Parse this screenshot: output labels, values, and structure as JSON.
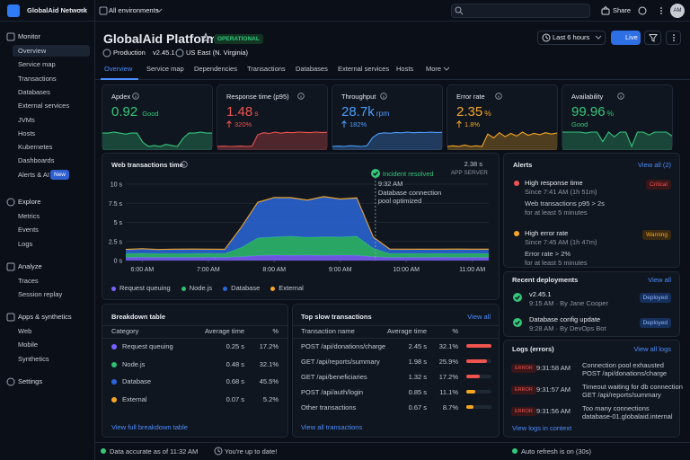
{
  "topbar": {
    "org": "GlobalAid Network",
    "environment": "All environments",
    "share": "Share",
    "avatar": "AM"
  },
  "sidebar": {
    "sections": [
      {
        "title": "Monitor",
        "items": [
          "Overview",
          "Service map",
          "Transactions",
          "Databases",
          "External services",
          "JVMs",
          "Hosts",
          "Kubernetes",
          "Dashboards",
          "Alerts & AI"
        ],
        "badge": "New"
      },
      {
        "title": "Explore",
        "items": [
          "Metrics",
          "Events",
          "Logs"
        ]
      },
      {
        "title": "Analyze",
        "items": [
          "Traces",
          "Session replay"
        ]
      },
      {
        "title": "Apps & synthetics",
        "items": [
          "Web",
          "Mobile",
          "Synthetics"
        ]
      },
      {
        "title": "Settings"
      }
    ]
  },
  "header": {
    "title": "GlobalAid Platform",
    "status": "OPERATIONAL",
    "environment": "Production",
    "version": "v2.45.1",
    "region": "US East (N. Virginia)",
    "time_range": "Last 6 hours",
    "live": "Live"
  },
  "tabs": [
    "Overview",
    "Service map",
    "Dependencies",
    "Transactions",
    "Databases",
    "External services",
    "Hosts",
    "More"
  ],
  "kpis": [
    {
      "label": "Apdex",
      "value": "0.92",
      "note": "Good",
      "note_position": "inline",
      "color": "#34c77b",
      "spark": [
        0.95,
        0.95,
        0.96,
        0.95,
        0.94,
        0.95,
        0.95,
        0.86,
        0.82,
        0.83,
        0.82,
        0.84,
        0.83,
        0.82,
        0.9,
        0.95,
        0.95,
        0.96,
        0.95,
        0.95
      ]
    },
    {
      "label": "Response time (p95)",
      "value": "1.48",
      "unit": "s",
      "delta": "320%",
      "color": "#ef5350",
      "spark": [
        0.4,
        0.42,
        0.4,
        0.41,
        0.43,
        0.4,
        0.42,
        1.3,
        1.45,
        1.4,
        1.5,
        1.42,
        1.48,
        1.45,
        1.5,
        1.48,
        1.46,
        1.5,
        1.47,
        1.48
      ]
    },
    {
      "label": "Throughput",
      "value": "28.7k",
      "unit": "rpm",
      "delta": "182%",
      "color": "#4c9dff",
      "spark": [
        10,
        10.5,
        10,
        11,
        10.5,
        10,
        11,
        22,
        27,
        28,
        27.5,
        28.5,
        28,
        29,
        28.2,
        28.7,
        28.4,
        28.9,
        28.5,
        28.7
      ]
    },
    {
      "label": "Error rate",
      "value": "2.35",
      "unit": "%",
      "delta": "1.8%",
      "color": "#f5a623",
      "spark": [
        0.3,
        0.4,
        0.3,
        0.5,
        0.3,
        0.4,
        0.3,
        2.2,
        1.6,
        2.4,
        1.8,
        2.3,
        1.9,
        2.5,
        2,
        2.3,
        2.1,
        2.4,
        2.2,
        2.35
      ]
    },
    {
      "label": "Availability",
      "value": "99.96",
      "unit": "%",
      "note": "Good",
      "note_position": "below",
      "color": "#34c77b",
      "spark": [
        100,
        100,
        100,
        100,
        99.99,
        100,
        100,
        99.9,
        100,
        99.95,
        100,
        100,
        99.85,
        100,
        100,
        99.97,
        100,
        100,
        100,
        99.96
      ]
    }
  ],
  "chart_data": {
    "type": "area",
    "stacked": true,
    "title": "Web transactions time",
    "summary": "2.38 s",
    "summary_label": "APP SERVER",
    "annotation": {
      "title": "Incident resolved",
      "time": "9:32 AM",
      "text": "Database connection pool optimized",
      "x": 9.533
    },
    "x": [
      5.75,
      6,
      6.25,
      6.5,
      6.75,
      7,
      7.25,
      7.5,
      7.75,
      8,
      8.25,
      8.5,
      8.75,
      9,
      9.25,
      9.5,
      9.75,
      10,
      10.25,
      10.5,
      10.75,
      11,
      11.25
    ],
    "xlim": [
      5.75,
      11.25
    ],
    "xticks": [
      {
        "value": 6,
        "label": "6:00 AM"
      },
      {
        "value": 7,
        "label": "7:00 AM"
      },
      {
        "value": 8,
        "label": "8:00 AM"
      },
      {
        "value": 9,
        "label": "9:00 AM"
      },
      {
        "value": 10,
        "label": "10:00 AM"
      },
      {
        "value": 11,
        "label": "11:00 AM"
      }
    ],
    "ylim": [
      0,
      10
    ],
    "yticks": [
      {
        "value": 0,
        "label": "0 s"
      },
      {
        "value": 2.5,
        "label": "2.5 s"
      },
      {
        "value": 5,
        "label": "5 s"
      },
      {
        "value": 7.5,
        "label": "7.5 s"
      },
      {
        "value": 10,
        "label": "10 s"
      }
    ],
    "grid": true,
    "series": [
      {
        "name": "Request queuing",
        "color": "#7b61ff",
        "values": [
          0.4,
          0.42,
          0.4,
          0.41,
          0.4,
          0.42,
          0.4,
          0.5,
          0.65,
          0.7,
          0.68,
          0.7,
          0.66,
          0.7,
          0.68,
          0.5,
          0.4,
          0.41,
          0.4,
          0.42,
          0.4,
          0.41,
          0.4
        ]
      },
      {
        "name": "Node.js",
        "color": "#2fbf71",
        "values": [
          0.5,
          0.52,
          0.5,
          0.51,
          0.5,
          0.52,
          0.5,
          1.2,
          2.3,
          2.4,
          2.5,
          2.35,
          2.45,
          2.4,
          2.5,
          1.1,
          0.5,
          0.52,
          0.5,
          0.51,
          0.5,
          0.52,
          0.5
        ]
      },
      {
        "name": "Database",
        "color": "#2a66d9",
        "values": [
          0.5,
          0.55,
          0.5,
          0.52,
          0.55,
          0.5,
          0.52,
          2.6,
          4.6,
          5.1,
          5,
          4.8,
          5.2,
          4.9,
          4.95,
          1.4,
          0.55,
          0.5,
          0.52,
          0.5,
          0.55,
          0.5,
          0.52
        ]
      },
      {
        "name": "External",
        "color": "#f5a623",
        "values": [
          0.07,
          0.07,
          0.06,
          0.07,
          0.07,
          0.07,
          0.06,
          0.07,
          0.08,
          0.07,
          0.07,
          0.08,
          0.07,
          0.07,
          0.08,
          0.07,
          0.07,
          0.06,
          0.07,
          0.07,
          0.07,
          0.07,
          0.07
        ]
      }
    ]
  },
  "alerts": {
    "title": "Alerts",
    "link": "View all (2)",
    "items": [
      {
        "title": "High response time",
        "since": "Since 7:41 AM (1h 51m)",
        "condition": "Web transactions p95 > 2s",
        "duration": "for at least 5 minutes",
        "severity": "Critical",
        "color": "#ef5350"
      },
      {
        "title": "High error rate",
        "since": "Since 7:45 AM (1h 47m)",
        "condition": "Error rate > 2%",
        "duration": "for at least 5 minutes",
        "severity": "Warning",
        "color": "#f5a623"
      }
    ]
  },
  "deployments": {
    "title": "Recent deployments",
    "link": "View all",
    "items": [
      {
        "title": "v2.45.1",
        "meta": "9:15 AM · By Jane Cooper",
        "status": "Deployed"
      },
      {
        "title": "Database config update",
        "meta": "9:28 AM · By DevOps Bot",
        "status": "Deployed"
      }
    ]
  },
  "logs": {
    "title": "Logs (errors)",
    "link": "View all logs",
    "footer_link": "View logs in context",
    "items": [
      {
        "level": "ERROR",
        "time": "9:31:58 AM",
        "message": "Connection pool exhausted",
        "detail": "POST /api/donations/charge"
      },
      {
        "level": "ERROR",
        "time": "9:31:57 AM",
        "message": "Timeout waiting for db connection",
        "detail": "GET /api/reports/summary"
      },
      {
        "level": "ERROR",
        "time": "9:31:56 AM",
        "message": "Too many connections",
        "detail": "database-01.globalaid.internal"
      }
    ]
  },
  "breakdown": {
    "title": "Breakdown table",
    "headers": [
      "Category",
      "Average time",
      "%"
    ],
    "rows": [
      [
        "Request queuing",
        "0.25 s",
        "17.2%"
      ],
      [
        "Node.js",
        "0.48 s",
        "32.1%"
      ],
      [
        "Database",
        "0.68 s",
        "45.5%"
      ],
      [
        "External",
        "0.07 s",
        "5.2%"
      ]
    ],
    "link": "View full breakdown table"
  },
  "slow_transactions": {
    "title": "Top slow transactions",
    "link": "View all",
    "headers": [
      "Transaction name",
      "Average time",
      "%"
    ],
    "rows": [
      [
        "POST /api/donations/charge",
        "2.45 s"
      ],
      [
        "GET /api/reports/summary",
        "1.98 s"
      ],
      [
        "GET /api/beneficiaries",
        "1.32 s"
      ],
      [
        "POST /api/auth/login",
        "0.85 s"
      ],
      [
        "Other transactions",
        "0.67 s"
      ]
    ],
    "values": [
      32.1,
      25.9,
      17.2,
      11.1,
      8.7
    ],
    "value_labels": [
      "32.1%",
      "25.9%",
      "17.2%",
      "11.1%",
      "8.7%"
    ],
    "colors": [
      "#ef5350",
      "#ef5350",
      "#ef5350",
      "#f5a623",
      "#f5a623"
    ],
    "footer_link": "View all transactions"
  },
  "footer": {
    "data_time": "Data accurate as of 11:32 AM",
    "update": "You're up to date!",
    "refresh": "Auto refresh is on (30s)"
  }
}
